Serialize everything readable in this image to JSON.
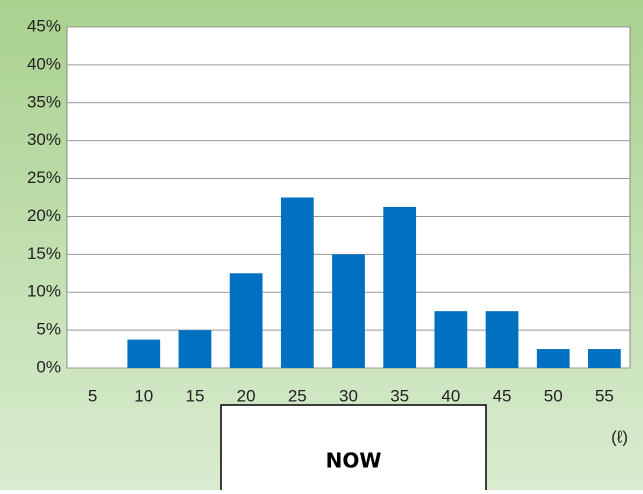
{
  "chart_data": {
    "type": "bar",
    "categories": [
      "5",
      "10",
      "15",
      "20",
      "25",
      "30",
      "35",
      "40",
      "45",
      "50",
      "55"
    ],
    "values": [
      0,
      3.75,
      5,
      12.5,
      22.5,
      15,
      21.25,
      7.5,
      7.5,
      2.5,
      2.5
    ],
    "color": "#0070c0",
    "ylim": [
      0,
      45
    ],
    "yticks": [
      {
        "value": 0,
        "label": "0%"
      },
      {
        "value": 5,
        "label": "5%"
      },
      {
        "value": 10,
        "label": "10%"
      },
      {
        "value": 15,
        "label": "15%"
      },
      {
        "value": 20,
        "label": "20%"
      },
      {
        "value": 25,
        "label": "25%"
      },
      {
        "value": 30,
        "label": "30%"
      },
      {
        "value": 35,
        "label": "35%"
      },
      {
        "value": 40,
        "label": "40%"
      },
      {
        "value": 45,
        "label": "45%"
      }
    ],
    "grid": true,
    "x_unit": "(ℓ)",
    "button": "NOW"
  }
}
